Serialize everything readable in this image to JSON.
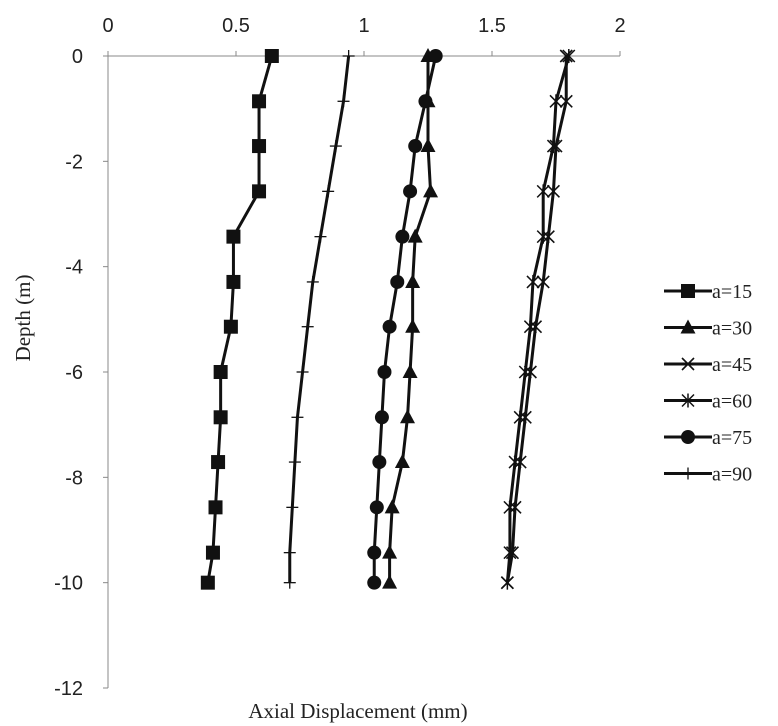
{
  "chart_data": {
    "type": "line",
    "title": "",
    "xlabel": "Axial Displacement (mm)",
    "ylabel": "Depth (m)",
    "xlim": [
      0,
      2
    ],
    "ylim": [
      -12,
      0
    ],
    "x_ticks": [
      "0",
      "0.5",
      "1",
      "1.5",
      "2"
    ],
    "y_ticks": [
      "0",
      "-2",
      "-4",
      "-6",
      "-8",
      "-10",
      "-12"
    ],
    "x_tick_values": [
      0,
      0.5,
      1,
      1.5,
      2
    ],
    "y_tick_values": [
      0,
      -2,
      -4,
      -6,
      -8,
      -10,
      -12
    ],
    "x_axis_position": "top",
    "grid": false,
    "legend_position": "right",
    "depth": [
      0,
      -0.86,
      -1.71,
      -2.57,
      -3.43,
      -4.29,
      -5.14,
      -6.0,
      -6.86,
      -7.71,
      -8.57,
      -9.43,
      -10.0
    ],
    "series": [
      {
        "name": "a=15",
        "marker": "square",
        "values": [
          0.64,
          0.59,
          0.59,
          0.59,
          0.49,
          0.49,
          0.48,
          0.44,
          0.44,
          0.43,
          0.42,
          0.41,
          0.39
        ]
      },
      {
        "name": "a=30",
        "marker": "triangle",
        "values": [
          1.25,
          1.25,
          1.25,
          1.26,
          1.2,
          1.19,
          1.19,
          1.18,
          1.17,
          1.15,
          1.11,
          1.1,
          1.1
        ]
      },
      {
        "name": "a=45",
        "marker": "x",
        "values": [
          1.79,
          1.79,
          1.75,
          1.74,
          1.72,
          1.7,
          1.67,
          1.65,
          1.63,
          1.61,
          1.59,
          1.58,
          1.56
        ]
      },
      {
        "name": "a=60",
        "marker": "asterisk",
        "values": [
          1.8,
          1.75,
          1.74,
          1.7,
          1.7,
          1.66,
          1.65,
          1.63,
          1.61,
          1.59,
          1.57,
          1.57,
          1.56
        ]
      },
      {
        "name": "a=75",
        "marker": "circle",
        "values": [
          1.28,
          1.24,
          1.2,
          1.18,
          1.15,
          1.13,
          1.1,
          1.08,
          1.07,
          1.06,
          1.05,
          1.04,
          1.04
        ]
      },
      {
        "name": "a=90",
        "marker": "plus",
        "values": [
          0.94,
          0.92,
          0.89,
          0.86,
          0.83,
          0.8,
          0.78,
          0.76,
          0.74,
          0.73,
          0.72,
          0.71,
          0.71
        ]
      }
    ]
  }
}
